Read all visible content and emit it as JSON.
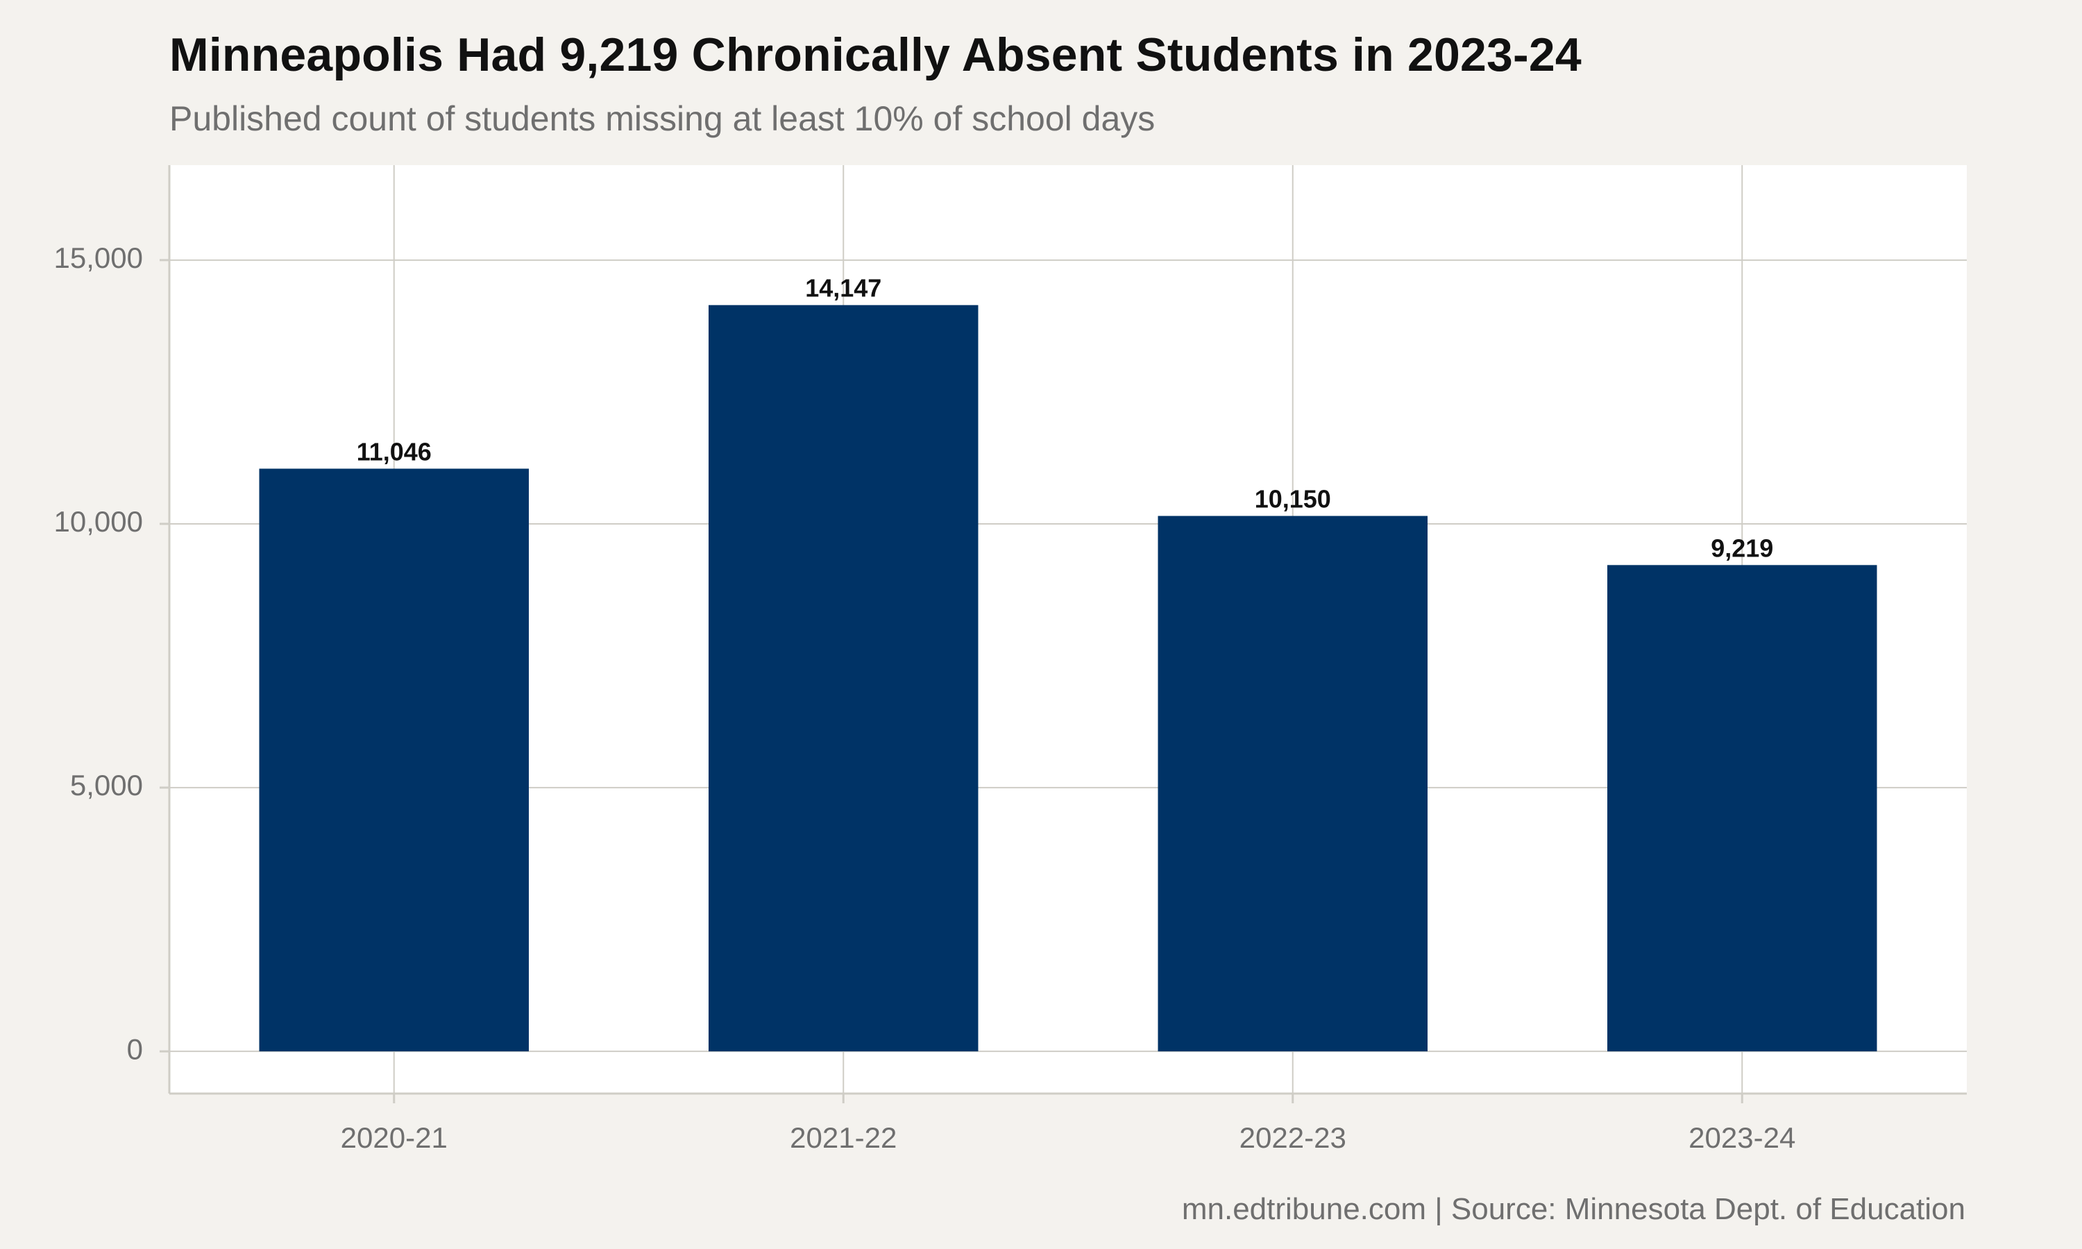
{
  "header": {
    "title": "Minneapolis Had 9,219 Chronically Absent Students in 2023-24",
    "subtitle": "Published count of students missing at least 10% of school days"
  },
  "footer": {
    "caption": "mn.edtribune.com | Source: Minnesota Dept. of Education"
  },
  "colors": {
    "bar": "#003366",
    "panel": "#ffffff",
    "page": "#f4f2ee",
    "grid": "#cfcdc6"
  },
  "chart_data": {
    "type": "bar",
    "title": "Minneapolis Had 9,219 Chronically Absent Students in 2023-24",
    "subtitle": "Published count of students missing at least 10% of school days",
    "xlabel": "",
    "ylabel": "",
    "categories": [
      "2020-21",
      "2021-22",
      "2022-23",
      "2023-24"
    ],
    "values": [
      11046,
      14147,
      10150,
      9219
    ],
    "data_labels": [
      "11,046",
      "14,147",
      "10,150",
      "9,219"
    ],
    "y_ticks": [
      0,
      5000,
      10000,
      15000
    ],
    "y_tick_labels": [
      "0",
      "5,000",
      "10,000",
      "15,000"
    ],
    "ylim": [
      -800,
      16800
    ],
    "grid": true,
    "legend": "none"
  }
}
